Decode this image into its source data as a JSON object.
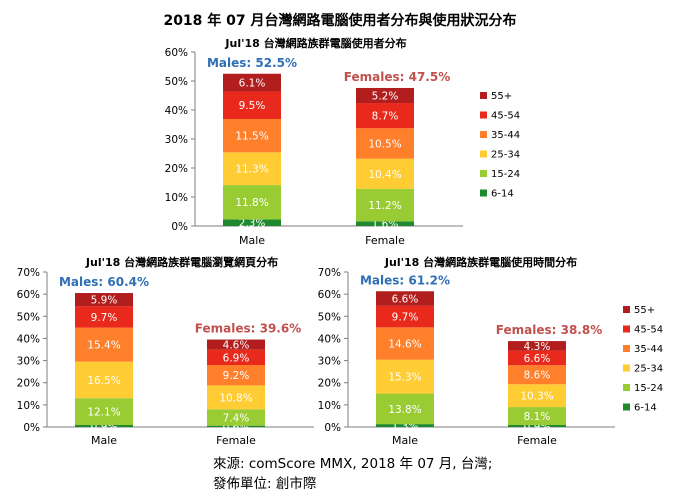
{
  "title": "2018 年 07 月台灣網路電腦使用者分布與使用狀況分布",
  "source_line1": "來源: comScore MMX, 2018 年 07 月, 台灣;",
  "source_line2": "發佈單位:  創市際",
  "colors": {
    "6-14": "#1f8a2d",
    "15-24": "#99cc33",
    "25-34": "#ffcc33",
    "35-44": "#ff7f2a",
    "45-54": "#e8291c",
    "55+": "#b21e1e",
    "males_label": "#2f6fb5",
    "females_label": "#c0504d"
  },
  "chart_data": [
    {
      "id": "users",
      "type": "bar",
      "stacked": true,
      "title": "Jul'18 台灣網路族群電腦使用者分布",
      "categories": [
        "Male",
        "Female"
      ],
      "totals": [
        "Males: 52.5%",
        "Females: 47.5%"
      ],
      "ylim": [
        0,
        60
      ],
      "yticks": [
        0,
        10,
        20,
        30,
        40,
        50,
        60
      ],
      "ytick_labels": [
        "0%",
        "10%",
        "20%",
        "30%",
        "40%",
        "50%",
        "60%"
      ],
      "legend": [
        "55+",
        "45-54",
        "35-44",
        "25-34",
        "15-24",
        "6-14"
      ],
      "series": [
        {
          "name": "6-14",
          "values": [
            2.3,
            1.6
          ],
          "labels": [
            "2.3%",
            "1.6%"
          ]
        },
        {
          "name": "15-24",
          "values": [
            11.8,
            11.2
          ],
          "labels": [
            "11.8%",
            "11.2%"
          ]
        },
        {
          "name": "25-34",
          "values": [
            11.3,
            10.4
          ],
          "labels": [
            "11.3%",
            "10.4%"
          ]
        },
        {
          "name": "35-44",
          "values": [
            11.5,
            10.5
          ],
          "labels": [
            "11.5%",
            "10.5%"
          ]
        },
        {
          "name": "45-54",
          "values": [
            9.5,
            8.7
          ],
          "labels": [
            "9.5%",
            "8.7%"
          ]
        },
        {
          "name": "55+",
          "values": [
            6.1,
            5.2
          ],
          "labels": [
            "6.1%",
            "5.2%"
          ]
        }
      ]
    },
    {
      "id": "pageviews",
      "type": "bar",
      "stacked": true,
      "title": "Jul'18 台灣網路族群電腦瀏覽網頁分布",
      "categories": [
        "Male",
        "Female"
      ],
      "totals": [
        "Males: 60.4%",
        "Females: 39.6%"
      ],
      "ylim": [
        0,
        70
      ],
      "yticks": [
        0,
        10,
        20,
        30,
        40,
        50,
        60,
        70
      ],
      "ytick_labels": [
        "0%",
        "10%",
        "20%",
        "30%",
        "40%",
        "50%",
        "60%",
        "70%"
      ],
      "legend": [],
      "series": [
        {
          "name": "6-14",
          "values": [
            0.9,
            0.6
          ],
          "labels": [
            "0.9%",
            "0.6%"
          ]
        },
        {
          "name": "15-24",
          "values": [
            12.1,
            7.4
          ],
          "labels": [
            "12.1%",
            "7.4%"
          ]
        },
        {
          "name": "25-34",
          "values": [
            16.5,
            10.8
          ],
          "labels": [
            "16.5%",
            "10.8%"
          ]
        },
        {
          "name": "35-44",
          "values": [
            15.4,
            9.2
          ],
          "labels": [
            "15.4%",
            "9.2%"
          ]
        },
        {
          "name": "45-54",
          "values": [
            9.7,
            6.9
          ],
          "labels": [
            "9.7%",
            "6.9%"
          ]
        },
        {
          "name": "55+",
          "values": [
            5.9,
            4.6
          ],
          "labels": [
            "5.9%",
            "4.6%"
          ]
        }
      ]
    },
    {
      "id": "minutes",
      "type": "bar",
      "stacked": true,
      "title": "Jul'18 台灣網路族群電腦使用時間分布",
      "categories": [
        "Male",
        "Female"
      ],
      "totals": [
        "Males: 61.2%",
        "Females: 38.8%"
      ],
      "ylim": [
        0,
        70
      ],
      "yticks": [
        0,
        10,
        20,
        30,
        40,
        50,
        60,
        70
      ],
      "ytick_labels": [
        "0%",
        "10%",
        "20%",
        "30%",
        "40%",
        "50%",
        "60%",
        "70%"
      ],
      "legend": [
        "55+",
        "45-54",
        "35-44",
        "25-34",
        "15-24",
        "6-14"
      ],
      "series": [
        {
          "name": "6-14",
          "values": [
            1.3,
            0.9
          ],
          "labels": [
            "1.3%",
            "0.9%"
          ]
        },
        {
          "name": "15-24",
          "values": [
            13.8,
            8.1
          ],
          "labels": [
            "13.8%",
            "8.1%"
          ]
        },
        {
          "name": "25-34",
          "values": [
            15.3,
            10.3
          ],
          "labels": [
            "15.3%",
            "10.3%"
          ]
        },
        {
          "name": "35-44",
          "values": [
            14.6,
            8.6
          ],
          "labels": [
            "14.6%",
            "8.6%"
          ]
        },
        {
          "name": "45-54",
          "values": [
            9.7,
            6.6
          ],
          "labels": [
            "9.7%",
            "6.6%"
          ]
        },
        {
          "name": "55+",
          "values": [
            6.6,
            4.3
          ],
          "labels": [
            "6.6%",
            "4.3%"
          ]
        }
      ]
    }
  ]
}
